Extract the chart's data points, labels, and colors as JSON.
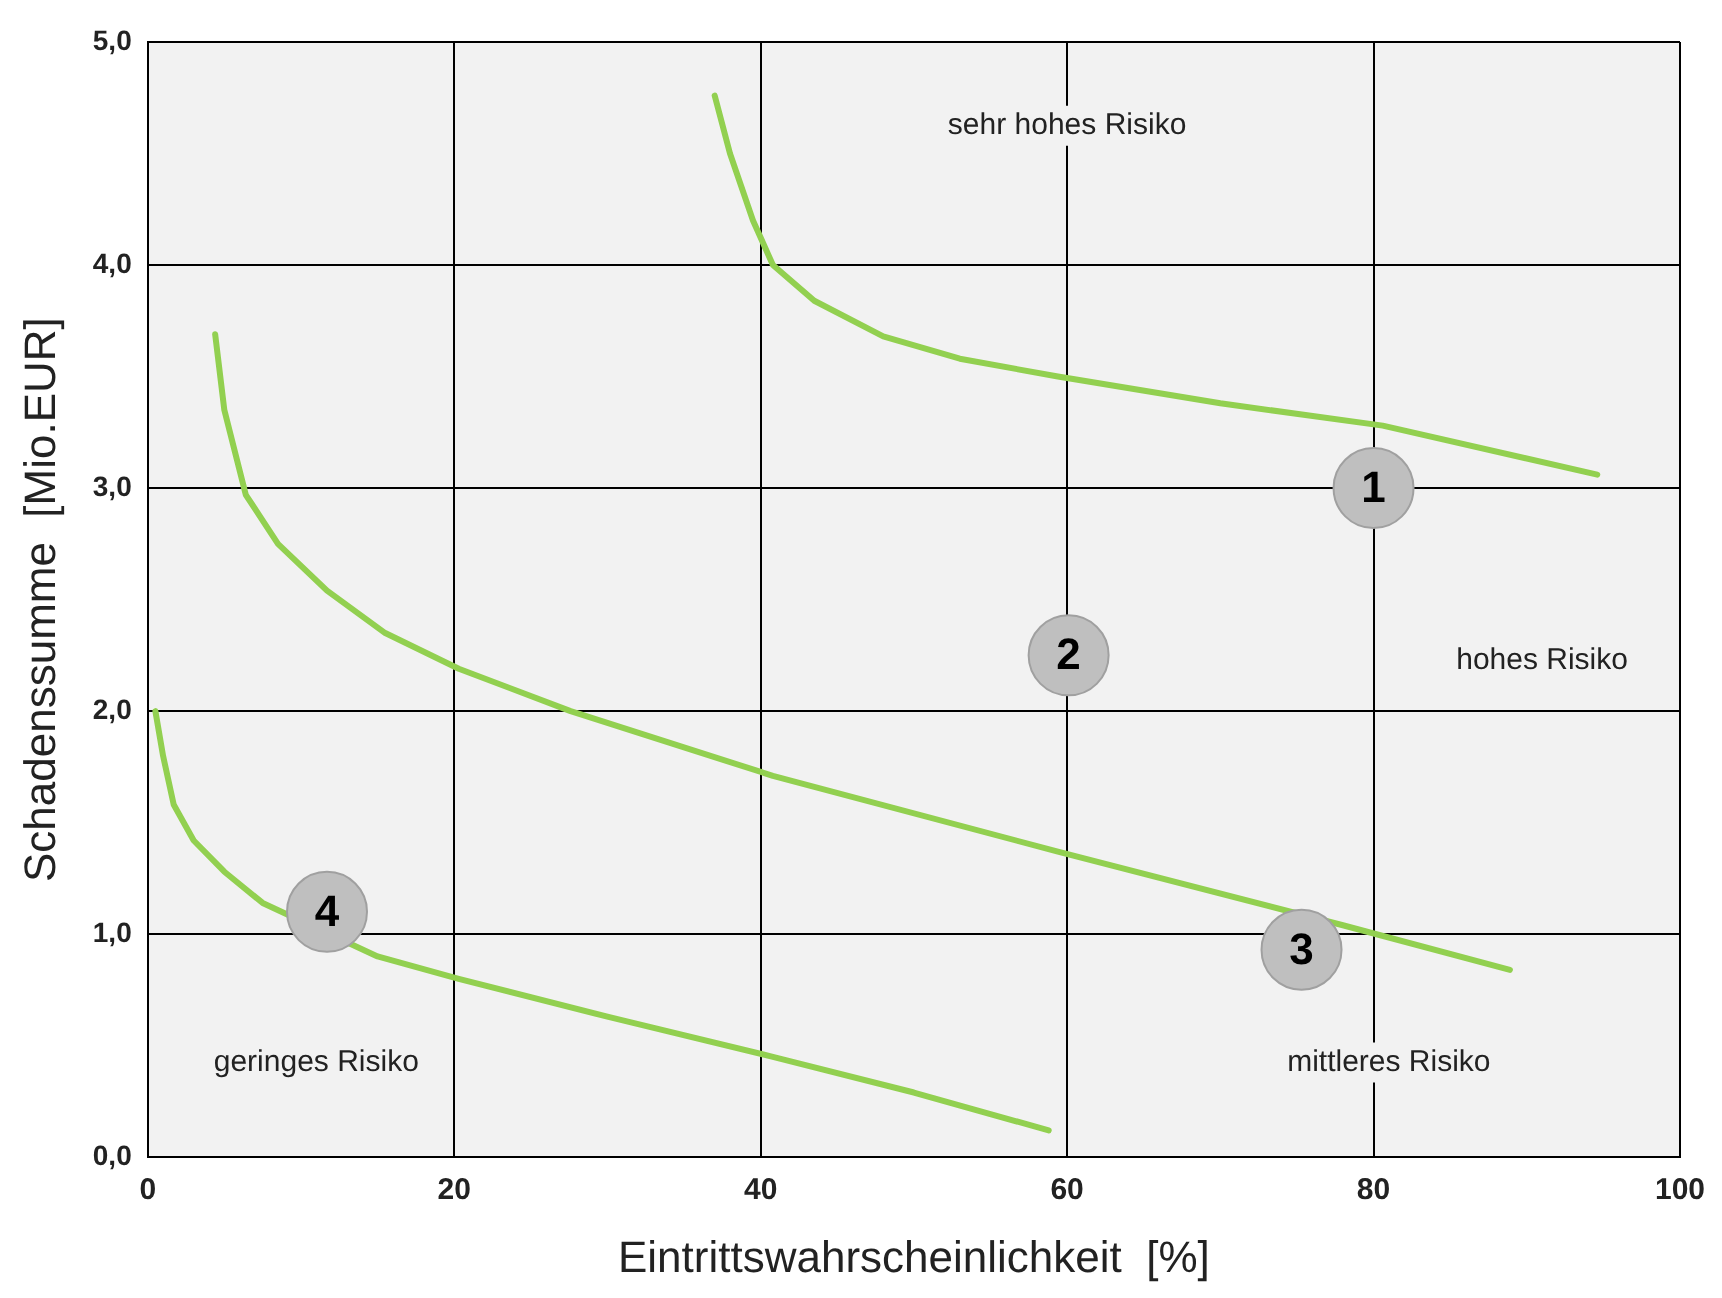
{
  "chart_data": {
    "type": "line",
    "xlabel": "Eintrittswahrscheinlichkeit  [%]",
    "ylabel": "Schadenssumme  [Mio.EUR]",
    "xlim": [
      0,
      100
    ],
    "xticks": [
      0,
      20,
      40,
      60,
      80,
      100
    ],
    "ylim": [
      0,
      5
    ],
    "yticks": [
      {
        "value": 0,
        "label": "0,0"
      },
      {
        "value": 1,
        "label": "1,0"
      },
      {
        "value": 2,
        "label": "2,0"
      },
      {
        "value": 3,
        "label": "3,0"
      },
      {
        "value": 4,
        "label": "4,0"
      },
      {
        "value": 5,
        "label": "5,0"
      }
    ],
    "grid": true,
    "legend": false,
    "marker": "none",
    "line_style": "solid",
    "series": [
      {
        "color": "#92d050",
        "x": [
          37,
          38,
          39.5,
          40.8,
          43.5,
          48,
          53,
          59.4,
          70,
          80.6,
          94.6
        ],
        "values": [
          4.76,
          4.5,
          4.2,
          4.0,
          3.84,
          3.68,
          3.58,
          3.5,
          3.38,
          3.28,
          3.06
        ]
      },
      {
        "color": "#92d050",
        "x": [
          4.4,
          5,
          6.4,
          8.5,
          11.7,
          15.5,
          20.3,
          27.6,
          40.8,
          59.4,
          78,
          88.9
        ],
        "values": [
          3.69,
          3.35,
          2.97,
          2.75,
          2.54,
          2.35,
          2.19,
          2.0,
          1.71,
          1.37,
          1.04,
          0.84
        ]
      },
      {
        "color": "#92d050",
        "x": [
          0.5,
          1.0,
          1.7,
          3,
          5,
          7.5,
          15,
          20.3,
          30,
          40.8,
          50,
          58.8
        ],
        "values": [
          2.0,
          1.8,
          1.58,
          1.42,
          1.28,
          1.14,
          0.9,
          0.8,
          0.63,
          0.45,
          0.29,
          0.12
        ]
      },
      {
        "type": "scatter",
        "marker": "circle",
        "color": "#bfbfbf",
        "x": [
          80,
          60.1,
          75.3,
          11.7
        ],
        "values": [
          3.0,
          2.25,
          0.93,
          1.1
        ]
      }
    ],
    "annotations": [
      "sehr hohes Risiko",
      "hohes Risiko",
      "mittleres Risiko",
      "geringes Risiko",
      {
        "text": "1",
        "x": 80,
        "y": 3.0
      },
      {
        "text": "2",
        "x": 60.1,
        "y": 2.25
      },
      {
        "text": "3",
        "x": 75.3,
        "y": 0.93
      },
      {
        "text": "4",
        "x": 11.7,
        "y": 1.1
      }
    ]
  }
}
